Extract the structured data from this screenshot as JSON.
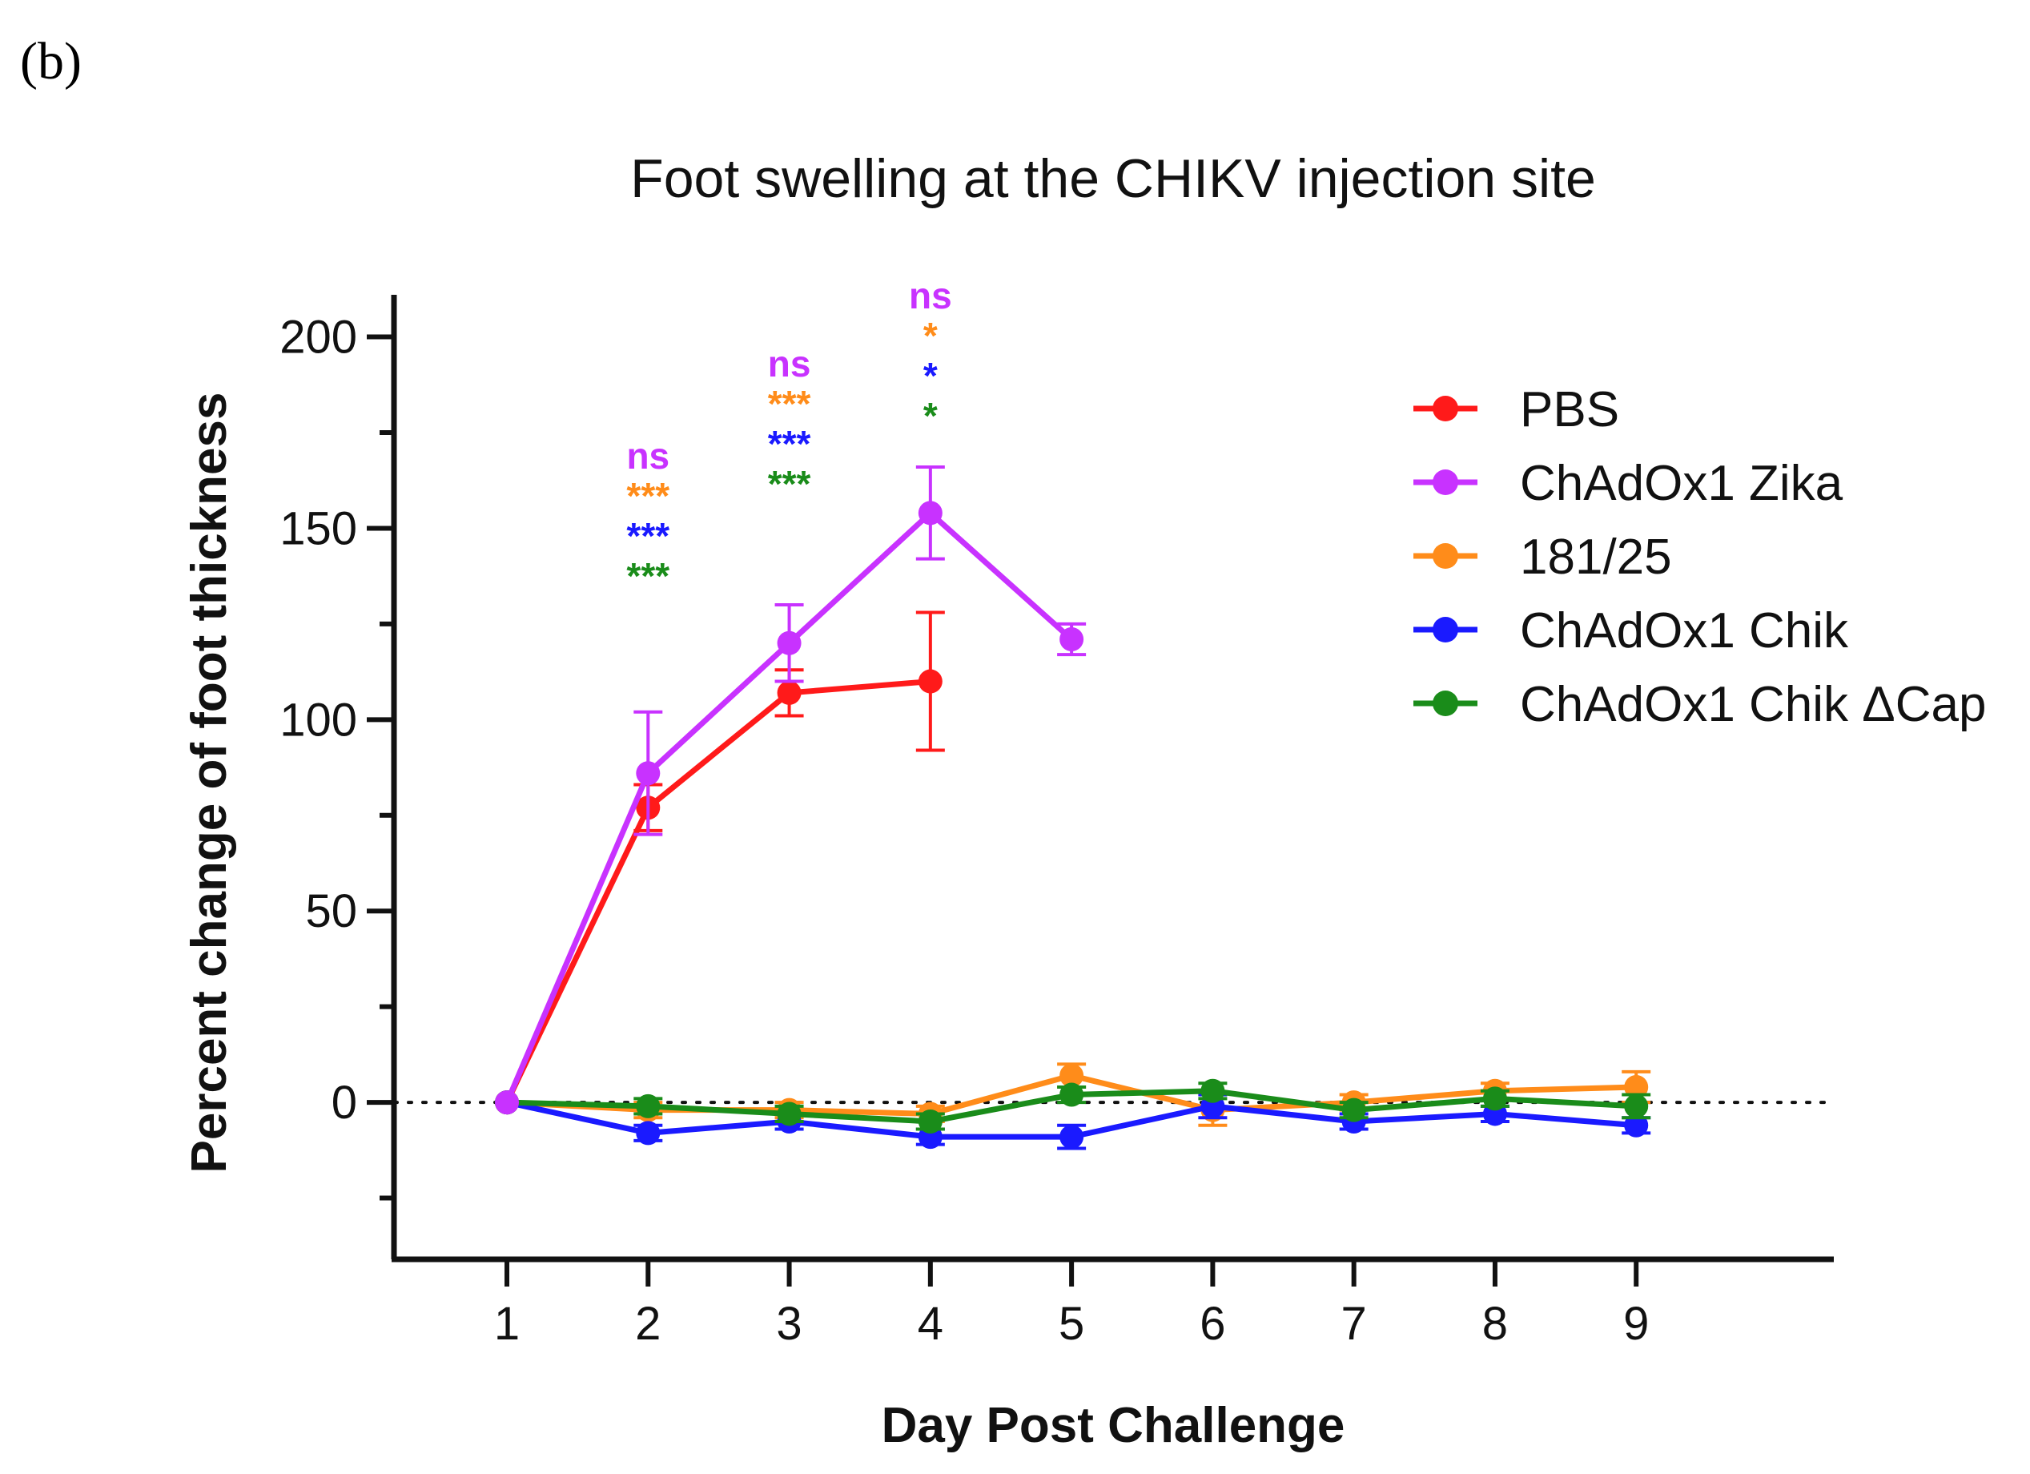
{
  "panel_label": "(b)",
  "chart_data": {
    "type": "line",
    "title": "Foot swelling at the CHIKV injection site",
    "xlabel": "Day Post Challenge",
    "ylabel": "Percent change of foot thickness",
    "x": [
      1,
      2,
      3,
      4,
      5,
      6,
      7,
      8,
      9
    ],
    "xlim": [
      0.2,
      10.4
    ],
    "ylim": [
      -41,
      211
    ],
    "yticks": [
      0,
      50,
      100,
      150,
      200
    ],
    "ytick_labels": [
      "0",
      "50",
      "100",
      "150",
      "200"
    ],
    "xtick_labels": [
      "1",
      "2",
      "3",
      "4",
      "5",
      "6",
      "7",
      "8",
      "9"
    ],
    "minor_yticks": [
      -25,
      25,
      75,
      125,
      175
    ],
    "baseline": 0,
    "series": [
      {
        "name": "PBS",
        "color": "#ff1a1a",
        "values": [
          0,
          77,
          107,
          110,
          null,
          null,
          null,
          null,
          null
        ],
        "errors": [
          0,
          6,
          6,
          18,
          null,
          null,
          null,
          null,
          null
        ]
      },
      {
        "name": "181/25",
        "color": "#ff8c1a",
        "values": [
          0,
          -2,
          -2,
          -3,
          7,
          -2,
          0,
          3,
          4
        ],
        "errors": [
          0,
          2,
          2,
          2,
          3,
          4,
          2,
          2,
          4
        ]
      },
      {
        "name": "ChAdOx1 Chik",
        "color": "#1a1aff",
        "values": [
          0,
          -8,
          -5,
          -9,
          -9,
          -1,
          -5,
          -3,
          -6
        ],
        "errors": [
          0,
          2,
          2,
          2,
          3,
          3,
          2,
          2,
          2
        ]
      },
      {
        "name": "ChAdOx1 Chik ΔCap",
        "color": "#1a8c1a",
        "values": [
          0,
          -1,
          -3,
          -5,
          2,
          3,
          -2,
          1,
          -1
        ],
        "errors": [
          0,
          2,
          2,
          2,
          2,
          2,
          2,
          2,
          3
        ]
      },
      {
        "name": "ChAdOx1 Zika",
        "color": "#c832ff",
        "values": [
          0,
          86,
          120,
          154,
          121,
          null,
          null,
          null,
          null
        ],
        "errors": [
          0,
          16,
          10,
          12,
          4,
          null,
          null,
          null,
          null
        ]
      }
    ],
    "legend_order": [
      "PBS",
      "ChAdOx1 Zika",
      "181/25",
      "ChAdOx1 Chik",
      "ChAdOx1 Chik ΔCap"
    ],
    "legend_position": "top-right",
    "annotations": [
      {
        "x": 2,
        "lines": [
          {
            "text": "ns",
            "color": "#c832ff"
          },
          {
            "text": "***",
            "color": "#ff8c1a"
          },
          {
            "text": "***",
            "color": "#1a1aff"
          },
          {
            "text": "***",
            "color": "#1a8c1a"
          }
        ]
      },
      {
        "x": 3,
        "lines": [
          {
            "text": "ns",
            "color": "#c832ff"
          },
          {
            "text": "***",
            "color": "#ff8c1a"
          },
          {
            "text": "***",
            "color": "#1a1aff"
          },
          {
            "text": "***",
            "color": "#1a8c1a"
          }
        ]
      },
      {
        "x": 4,
        "lines": [
          {
            "text": "ns",
            "color": "#c832ff"
          },
          {
            "text": "*",
            "color": "#ff8c1a"
          },
          {
            "text": "*",
            "color": "#1a1aff"
          },
          {
            "text": "*",
            "color": "#1a8c1a"
          }
        ]
      }
    ]
  }
}
